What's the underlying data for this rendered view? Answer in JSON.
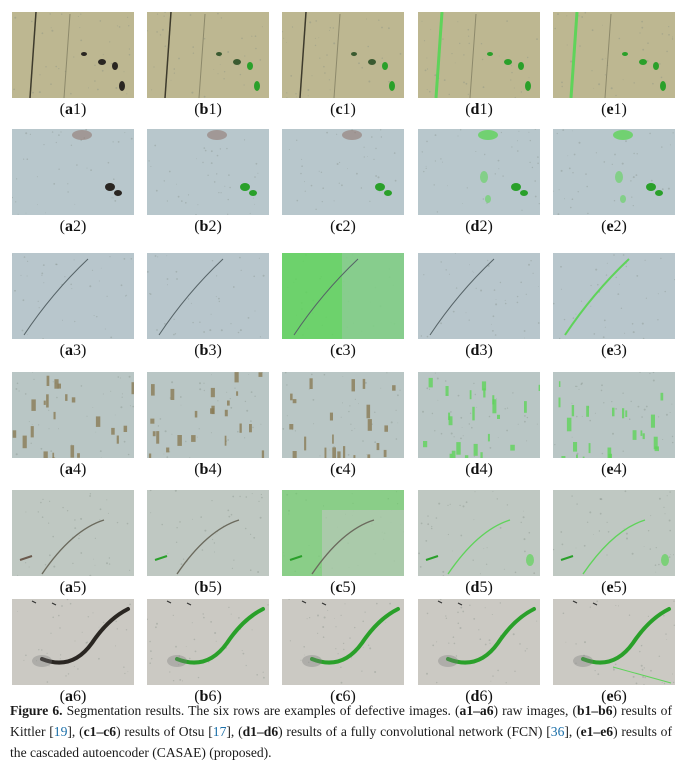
{
  "panels": [
    [
      {
        "label": "(a1)",
        "letter": "a",
        "num": "1"
      },
      {
        "label": "(b1)",
        "letter": "b",
        "num": "1"
      },
      {
        "label": "(c1)",
        "letter": "c",
        "num": "1"
      },
      {
        "label": "(d1)",
        "letter": "d",
        "num": "1"
      },
      {
        "label": "(e1)",
        "letter": "e",
        "num": "1"
      }
    ],
    [
      {
        "label": "(a2)",
        "letter": "a",
        "num": "2"
      },
      {
        "label": "(b2)",
        "letter": "b",
        "num": "2"
      },
      {
        "label": "(c2)",
        "letter": "c",
        "num": "2"
      },
      {
        "label": "(d2)",
        "letter": "d",
        "num": "2"
      },
      {
        "label": "(e2)",
        "letter": "e",
        "num": "2"
      }
    ],
    [
      {
        "label": "(a3)",
        "letter": "a",
        "num": "3"
      },
      {
        "label": "(b3)",
        "letter": "b",
        "num": "3"
      },
      {
        "label": "(c3)",
        "letter": "c",
        "num": "3"
      },
      {
        "label": "(d3)",
        "letter": "d",
        "num": "3"
      },
      {
        "label": "(e3)",
        "letter": "e",
        "num": "3"
      }
    ],
    [
      {
        "label": "(a4)",
        "letter": "a",
        "num": "4"
      },
      {
        "label": "(b4)",
        "letter": "b",
        "num": "4"
      },
      {
        "label": "(c4)",
        "letter": "c",
        "num": "4"
      },
      {
        "label": "(d4)",
        "letter": "d",
        "num": "4"
      },
      {
        "label": "(e4)",
        "letter": "e",
        "num": "4"
      }
    ],
    [
      {
        "label": "(a5)",
        "letter": "a",
        "num": "5"
      },
      {
        "label": "(b5)",
        "letter": "b",
        "num": "5"
      },
      {
        "label": "(c5)",
        "letter": "c",
        "num": "5"
      },
      {
        "label": "(d5)",
        "letter": "d",
        "num": "5"
      },
      {
        "label": "(e5)",
        "letter": "e",
        "num": "5"
      }
    ],
    [
      {
        "label": "(a6)",
        "letter": "a",
        "num": "6"
      },
      {
        "label": "(b6)",
        "letter": "b",
        "num": "6"
      },
      {
        "label": "(c6)",
        "letter": "c",
        "num": "6"
      },
      {
        "label": "(d6)",
        "letter": "d",
        "num": "6"
      },
      {
        "label": "(e6)",
        "letter": "e",
        "num": "6"
      }
    ]
  ],
  "caption": {
    "title": "Figure 6.",
    "t1": " Segmentation results. The six rows are examples of defective images. (",
    "a_range": "a1–a6",
    "t2": ") raw images, (",
    "b_range": "b1–b6",
    "t3": ") results of Kittler [",
    "ref_kittler": "19",
    "t4": "], (",
    "c_range": "c1–c6",
    "t5": ") results of Otsu [",
    "ref_otsu": "17",
    "t6": "], (",
    "d_range": "d1–d6",
    "t7": ") results of a fully convolutional network (FCN) [",
    "ref_fcn": "36",
    "t8": "], (",
    "e_range": "e1–e6",
    "t9": ") results of the cascaded autoencoder (CASAE) (proposed)."
  },
  "colors": {
    "row1_bg": "#bdb791",
    "row2_bg": "#b8c7cc",
    "row3_bg": "#b8c6cc",
    "row4_bg": "#b9c6c5",
    "row5_bg": "#bfc8c2",
    "row6_bg": "#cbc9c3",
    "defect_dark": "#2a2622",
    "segment_green": "#2aa02a",
    "bright_green": "#5fd35a",
    "caption_ref": "#1a6ea8"
  }
}
